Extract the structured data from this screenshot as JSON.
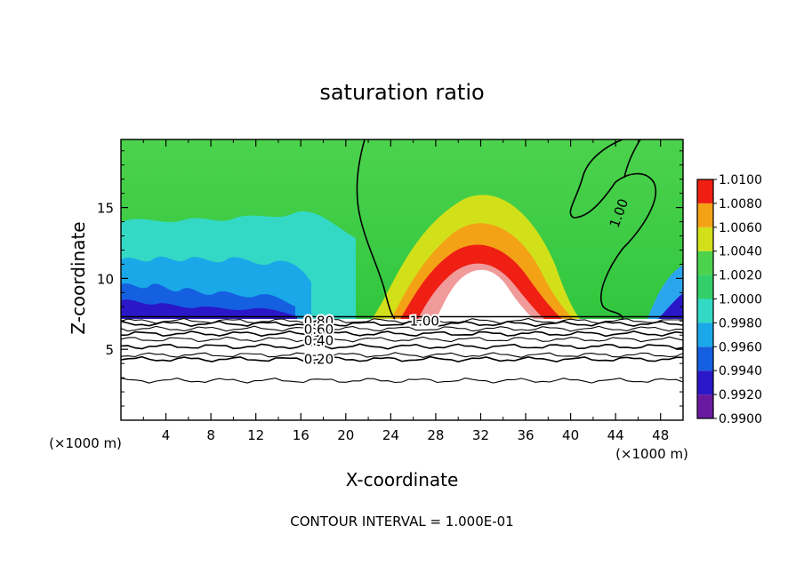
{
  "chart_data": {
    "type": "heatmap",
    "title": "saturation ratio",
    "xlabel": "X-coordinate",
    "ylabel": "Z-coordinate",
    "x_unit": "(×1000 m)",
    "y_unit": "(×1000 m)",
    "xlim": [
      0,
      50
    ],
    "ylim": [
      0,
      19.8
    ],
    "x_ticks": [
      4,
      8,
      12,
      16,
      20,
      24,
      28,
      32,
      36,
      40,
      44,
      48
    ],
    "y_ticks": [
      5,
      10,
      15
    ],
    "footer": "CONTOUR INTERVAL = 1.000E-01",
    "colorbar": {
      "levels": [
        0.99,
        0.992,
        0.994,
        0.996,
        0.998,
        1.0,
        1.002,
        1.004,
        1.006,
        1.008,
        1.01
      ],
      "labels": [
        "0.9900",
        "0.9920",
        "0.9940",
        "0.9960",
        "0.9980",
        "1.0000",
        "1.0020",
        "1.0040",
        "1.0060",
        "1.0080",
        "1.0100"
      ]
    },
    "contour_labels": [
      {
        "text": "0.80",
        "x": 17.6,
        "z": 7.0
      },
      {
        "text": "0.60",
        "x": 17.6,
        "z": 6.4
      },
      {
        "text": "0.40",
        "x": 17.6,
        "z": 5.6
      },
      {
        "text": "0.20",
        "x": 17.6,
        "z": 4.3
      },
      {
        "text": "1.00",
        "x": 27.0,
        "z": 7.0
      },
      {
        "text": "1.00",
        "x": 44.3,
        "z": 14.6
      }
    ],
    "contours_below_boundary": [
      {
        "level": 0.9,
        "z": 7.0
      },
      {
        "level": 0.8,
        "z": 6.8
      },
      {
        "level": 0.7,
        "z": 6.45
      },
      {
        "level": 0.6,
        "z": 6.1
      },
      {
        "level": 0.5,
        "z": 5.7
      },
      {
        "level": 0.4,
        "z": 5.2
      },
      {
        "level": 0.3,
        "z": 4.6
      },
      {
        "level": 0.2,
        "z": 4.3
      },
      {
        "level": 0.1,
        "z": 2.8
      }
    ],
    "boundary_z": 7.3
  }
}
